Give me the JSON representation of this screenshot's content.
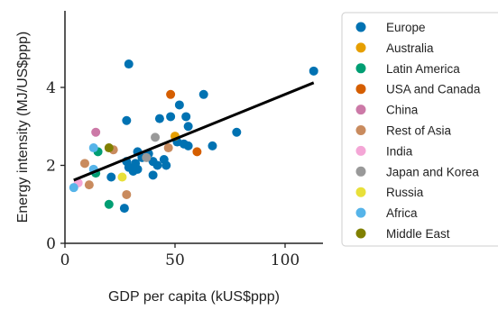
{
  "chart_data": {
    "type": "scatter",
    "xlabel": "GDP per capita (kUS$ppp)",
    "ylabel": "Energy intensity (MJ/US$ppp)",
    "xlim": [
      0,
      120
    ],
    "ylim": [
      0,
      6
    ],
    "xticks": [
      0,
      50,
      100
    ],
    "yticks": [
      0,
      2,
      4
    ],
    "grid": false,
    "legend_position": "right",
    "series": [
      {
        "name": "Europe",
        "color": "#0072b2",
        "points": [
          [
            113,
            4.42
          ],
          [
            78,
            2.85
          ],
          [
            67,
            2.5
          ],
          [
            63,
            3.82
          ],
          [
            55,
            3.25
          ],
          [
            56,
            3.0
          ],
          [
            52,
            3.55
          ],
          [
            54,
            2.55
          ],
          [
            56,
            2.5
          ],
          [
            51,
            2.6
          ],
          [
            48,
            3.25
          ],
          [
            43,
            3.2
          ],
          [
            40,
            2.1
          ],
          [
            42,
            2.0
          ],
          [
            45,
            2.15
          ],
          [
            46,
            2.0
          ],
          [
            38,
            2.3
          ],
          [
            35,
            2.2
          ],
          [
            33,
            2.35
          ],
          [
            32,
            2.05
          ],
          [
            31,
            1.85
          ],
          [
            29,
            1.95
          ],
          [
            33,
            1.9
          ],
          [
            28,
            2.1
          ],
          [
            40,
            1.75
          ],
          [
            28,
            3.15
          ],
          [
            29,
            4.6
          ],
          [
            21,
            1.7
          ],
          [
            27,
            0.9
          ]
        ]
      },
      {
        "name": "Australia",
        "color": "#e69f00",
        "points": [
          [
            50,
            2.75
          ]
        ]
      },
      {
        "name": "Latin America",
        "color": "#009e73",
        "points": [
          [
            15,
            2.35
          ],
          [
            20,
            1.0
          ],
          [
            14,
            1.8
          ]
        ]
      },
      {
        "name": "USA and Canada",
        "color": "#d55e00",
        "points": [
          [
            48,
            3.82
          ],
          [
            60,
            2.35
          ]
        ]
      },
      {
        "name": "China",
        "color": "#cc79a7",
        "points": [
          [
            14,
            2.85
          ]
        ]
      },
      {
        "name": "Rest of Asia",
        "color": "#c98b5e",
        "points": [
          [
            9,
            2.05
          ],
          [
            11,
            1.5
          ],
          [
            28,
            1.25
          ],
          [
            47,
            2.45
          ],
          [
            22,
            2.4
          ]
        ]
      },
      {
        "name": "India",
        "color": "#f4a6d6",
        "points": [
          [
            6,
            1.55
          ]
        ]
      },
      {
        "name": "Japan and Korea",
        "color": "#999999",
        "points": [
          [
            41,
            2.72
          ],
          [
            37,
            2.2
          ]
        ]
      },
      {
        "name": "Russia",
        "color": "#e8e03a",
        "points": [
          [
            26,
            1.7
          ]
        ]
      },
      {
        "name": "Africa",
        "color": "#56b4e9",
        "points": [
          [
            13,
            2.45
          ],
          [
            4,
            1.43
          ],
          [
            13,
            1.9
          ]
        ]
      },
      {
        "name": "Middle East",
        "color": "#808000",
        "points": [
          [
            20,
            2.45
          ]
        ]
      }
    ],
    "trend_line": {
      "x": [
        4,
        113
      ],
      "y": [
        1.62,
        4.12
      ],
      "color": "#000000"
    }
  }
}
